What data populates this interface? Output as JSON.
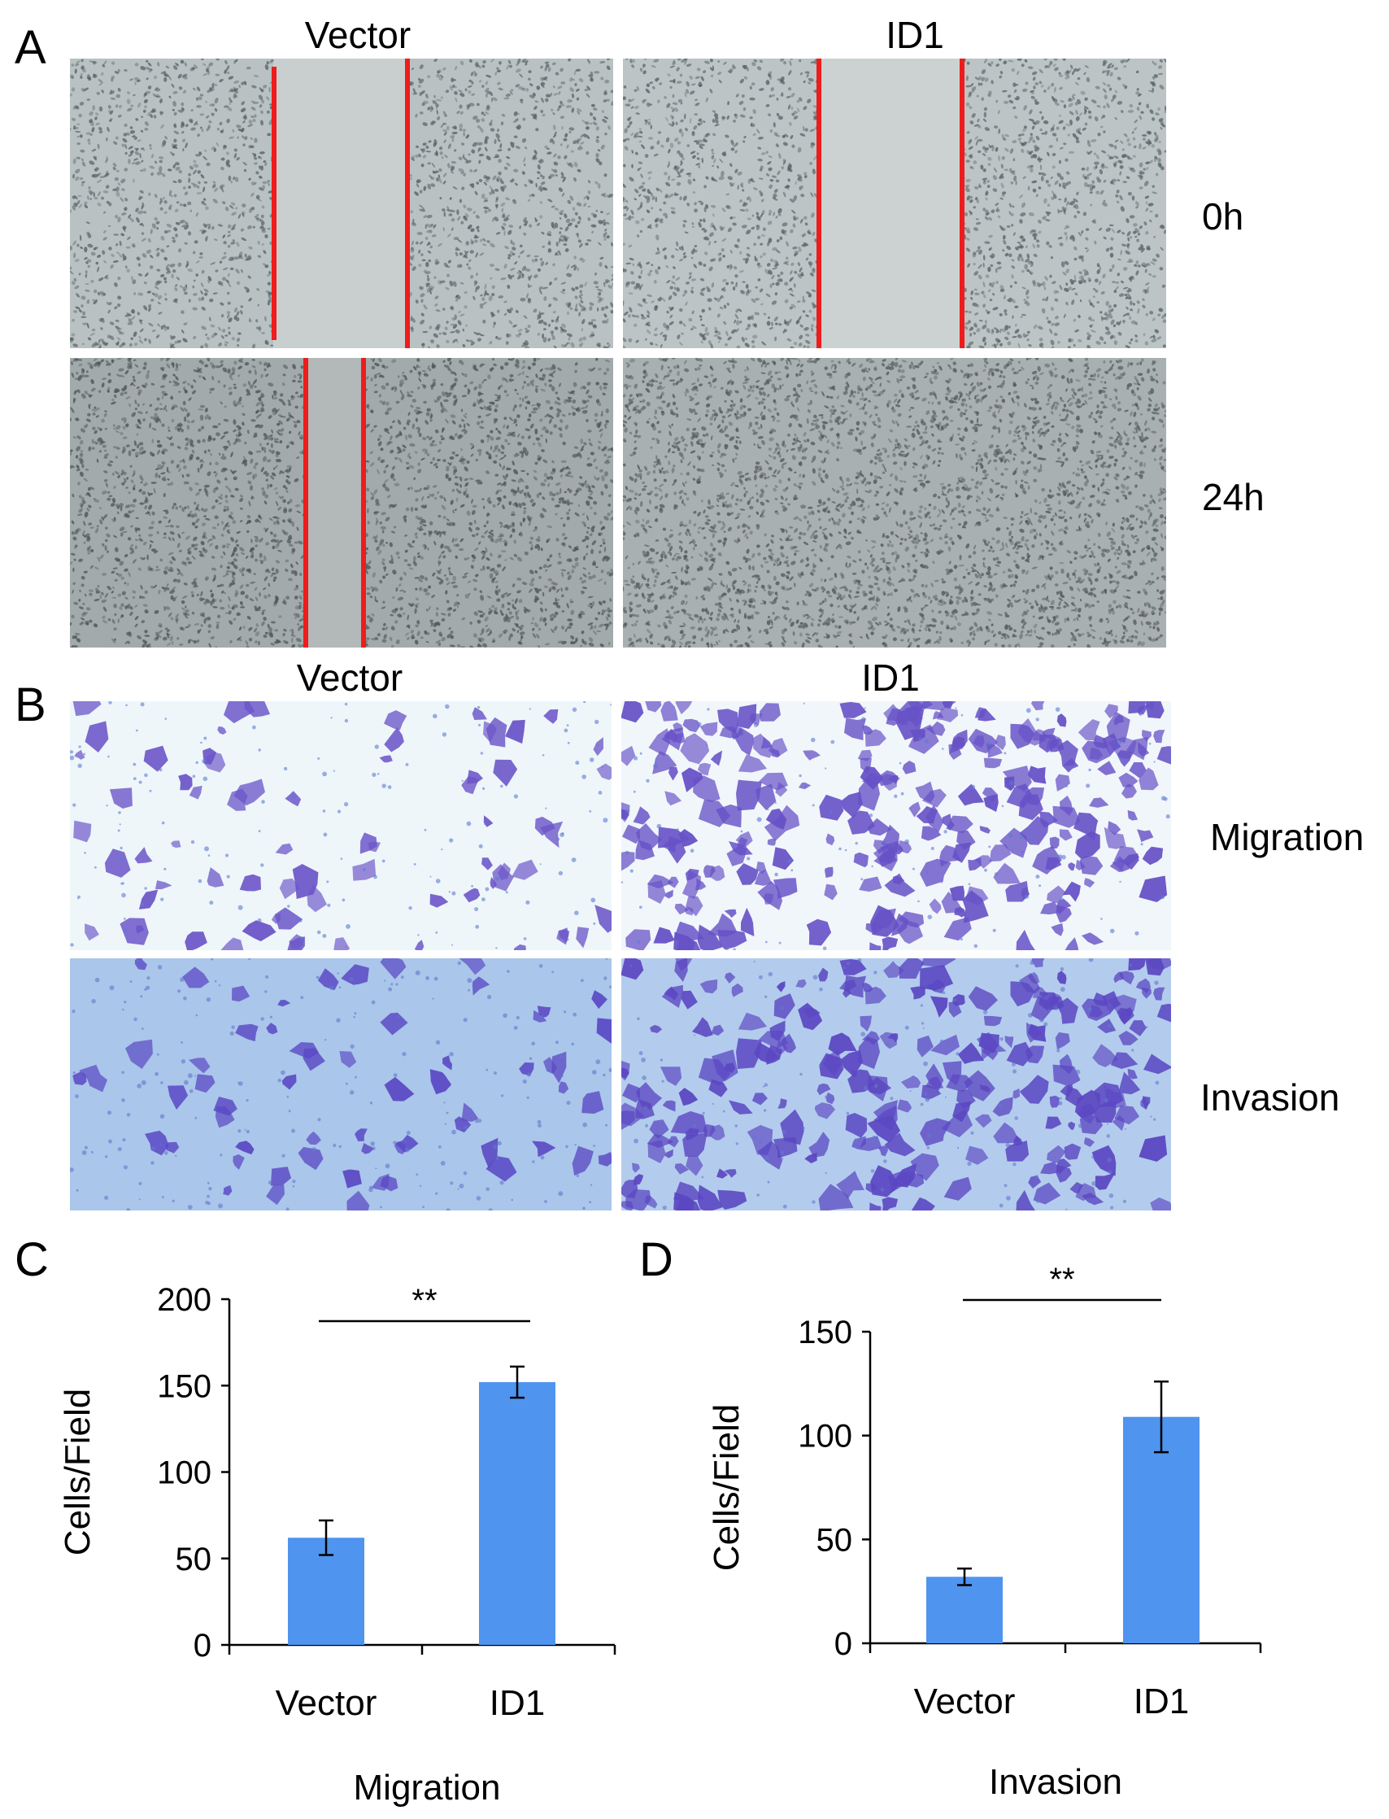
{
  "panels": {
    "A": {
      "letter": "A",
      "columns": [
        "Vector",
        "ID1"
      ],
      "rows": [
        "0h",
        "24h"
      ]
    },
    "B": {
      "letter": "B",
      "columns": [
        "Vector",
        "ID1"
      ],
      "rows": [
        "Migration",
        "Invasion"
      ]
    },
    "C": {
      "letter": "C"
    },
    "D": {
      "letter": "D"
    }
  },
  "colors": {
    "scratch_line": "#ee1c1c",
    "bar": "#4f94ee",
    "stain": "#6b55c8"
  },
  "chart_data": [
    {
      "type": "bar",
      "panel": "C",
      "categories": [
        "Vector",
        "ID1"
      ],
      "values": [
        62,
        152
      ],
      "errors": [
        10,
        9
      ],
      "ylabel": "Cells/Field",
      "xlabel": "Migration",
      "ylim": [
        0,
        200
      ],
      "yticks": [
        0,
        50,
        100,
        150,
        200
      ],
      "significance": "**"
    },
    {
      "type": "bar",
      "panel": "D",
      "categories": [
        "Vector",
        "ID1"
      ],
      "values": [
        32,
        109
      ],
      "errors": [
        4,
        17
      ],
      "ylabel": "Cells/Field",
      "xlabel": "Invasion",
      "ylim": [
        0,
        150
      ],
      "yticks": [
        0,
        50,
        100,
        150
      ],
      "significance": "**"
    }
  ]
}
